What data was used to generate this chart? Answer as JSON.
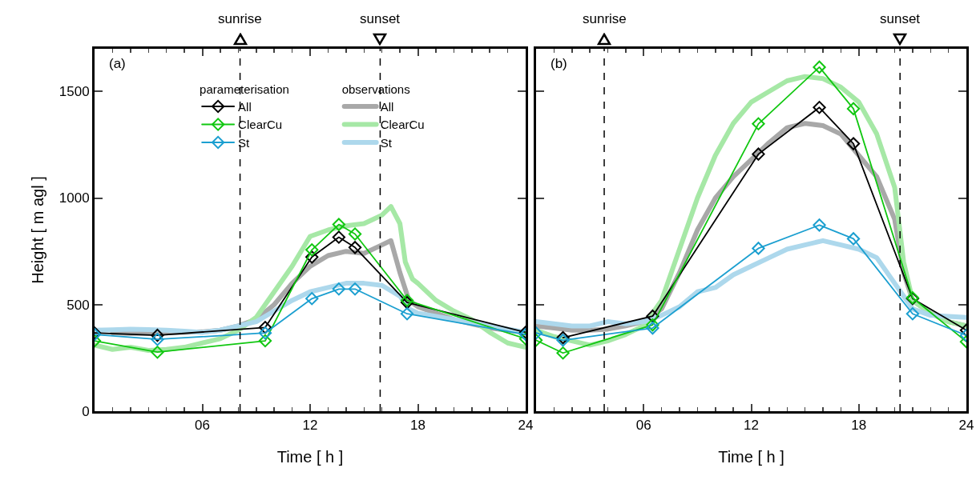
{
  "chart_data": [
    {
      "type": "line",
      "xlabel": "Time [ h ]",
      "ylabel": "Height [ m agl ]",
      "legend_title": "parameterisation",
      "annotations": [
        "(a)",
        "observations"
      ],
      "legend": "top",
      "xlim": [
        0,
        24
      ],
      "xticks": [
        {
          "value": 6,
          "label": "06"
        },
        12,
        18,
        24
      ],
      "ylim": [
        0,
        1700
      ],
      "yticks": [
        0,
        500,
        1000,
        1500
      ],
      "grid": false,
      "line_style": "solid",
      "ref_lines": [
        {
          "axis": "x",
          "value": 8.1,
          "label": "sunrise",
          "color": "#000000",
          "line_style": "dashed"
        },
        {
          "axis": "x",
          "value": 15.9,
          "label": "sunset",
          "color": "#000000",
          "line_style": "dashed"
        }
      ],
      "series": [
        {
          "name": "All",
          "color": "#a8a8a8",
          "marker": "none",
          "x": [
            1,
            2,
            3,
            4,
            5,
            6,
            7,
            8,
            9,
            10,
            11,
            12,
            13,
            14,
            15,
            16,
            16.5,
            17,
            17.5,
            18,
            19,
            20,
            21,
            22,
            23,
            24
          ],
          "values": [
            368,
            365,
            365,
            368,
            370,
            372,
            380,
            400,
            430,
            500,
            600,
            680,
            730,
            750,
            740,
            780,
            800,
            650,
            520,
            490,
            460,
            430,
            410,
            390,
            380,
            370
          ]
        },
        {
          "name": "ClearCu",
          "color": "#a6e8a6",
          "marker": "none",
          "x": [
            0,
            1,
            2,
            3,
            4,
            5,
            6,
            7,
            8,
            9,
            10,
            11,
            12,
            13,
            14,
            15,
            15.5,
            16,
            16.5,
            17,
            17.3,
            17.7,
            18,
            19,
            20,
            21,
            22,
            23,
            24
          ],
          "values": [
            310,
            290,
            300,
            285,
            290,
            300,
            320,
            340,
            380,
            440,
            560,
            680,
            820,
            850,
            870,
            880,
            900,
            920,
            960,
            880,
            700,
            620,
            600,
            520,
            470,
            430,
            370,
            320,
            300
          ]
        },
        {
          "name": "St",
          "color": "#add8ec",
          "marker": "none",
          "x": [
            0,
            1,
            2,
            3,
            4,
            5,
            6,
            7,
            8,
            9,
            10,
            11,
            12,
            13,
            14,
            15,
            16,
            17,
            17.5,
            18,
            19,
            20,
            21,
            22,
            23,
            24
          ],
          "values": [
            380,
            382,
            385,
            383,
            380,
            375,
            370,
            380,
            400,
            420,
            470,
            520,
            560,
            580,
            600,
            600,
            590,
            540,
            480,
            460,
            445,
            430,
            415,
            400,
            385,
            370
          ]
        },
        {
          "name": "All",
          "color": "#000000",
          "marker": "diamond",
          "x": [
            0,
            3.5,
            9.5,
            12.1,
            13.6,
            14.5,
            17.4,
            24
          ],
          "values": [
            367,
            356,
            393,
            723,
            816,
            768,
            510,
            370
          ]
        },
        {
          "name": "ClearCu",
          "color": "#11c711",
          "marker": "diamond",
          "x": [
            0,
            3.5,
            9.5,
            12.1,
            13.6,
            14.5,
            17.4,
            24
          ],
          "values": [
            330,
            277,
            330,
            757,
            876,
            831,
            520,
            340
          ]
        },
        {
          "name": "St",
          "color": "#1b9fd0",
          "marker": "diamond",
          "x": [
            0,
            3.5,
            9.5,
            12.1,
            13.6,
            14.5,
            17.4,
            24
          ],
          "values": [
            360,
            337,
            367,
            528,
            573,
            573,
            457,
            360
          ]
        }
      ]
    },
    {
      "type": "line",
      "xlabel": "Time [ h ]",
      "annotations": [
        "(b)"
      ],
      "legend": false,
      "tick_labels": "x",
      "xlim": [
        0,
        24
      ],
      "xticks": [
        {
          "value": 6,
          "label": "06"
        },
        12,
        18,
        24
      ],
      "ylim": [
        0,
        1700
      ],
      "yticks": [
        0,
        500,
        1000,
        1500
      ],
      "grid": false,
      "line_style": "solid",
      "ref_lines": [
        {
          "axis": "x",
          "value": 3.8,
          "label": "sunrise",
          "color": "#000000",
          "line_style": "dashed"
        },
        {
          "axis": "x",
          "value": 20.3,
          "label": "sunset",
          "color": "#000000",
          "line_style": "dashed"
        }
      ],
      "series": [
        {
          "color": "#a8a8a8",
          "marker": "none",
          "x": [
            0,
            1,
            2,
            3,
            4,
            5,
            6,
            7,
            8,
            9,
            10,
            11,
            12,
            13,
            14,
            15,
            16,
            17,
            18,
            19,
            20,
            20.5,
            21,
            22,
            23,
            24
          ],
          "values": [
            400,
            390,
            380,
            380,
            385,
            400,
            420,
            480,
            650,
            850,
            1000,
            1100,
            1180,
            1260,
            1330,
            1350,
            1340,
            1300,
            1200,
            1100,
            900,
            650,
            520,
            460,
            420,
            400
          ]
        },
        {
          "color": "#a6e8a6",
          "marker": "none",
          "x": [
            0,
            1,
            2,
            3,
            4,
            5,
            6,
            7,
            8,
            9,
            10,
            11,
            12,
            13,
            14,
            15,
            16,
            17,
            18,
            19,
            20,
            20.5,
            21,
            22,
            23,
            24
          ],
          "values": [
            380,
            350,
            330,
            310,
            330,
            360,
            400,
            520,
            760,
            1000,
            1200,
            1350,
            1450,
            1500,
            1550,
            1570,
            1560,
            1520,
            1450,
            1300,
            1050,
            700,
            520,
            460,
            420,
            400
          ]
        },
        {
          "color": "#add8ec",
          "marker": "none",
          "x": [
            0,
            1,
            2,
            3,
            4,
            5,
            6,
            7,
            8,
            9,
            10,
            11,
            12,
            13,
            14,
            15,
            16,
            17,
            18,
            19,
            20,
            21,
            22,
            23,
            24
          ],
          "values": [
            420,
            410,
            400,
            400,
            420,
            410,
            420,
            450,
            490,
            560,
            580,
            640,
            680,
            720,
            760,
            780,
            800,
            780,
            760,
            720,
            600,
            480,
            450,
            445,
            440
          ]
        },
        {
          "color": "#000000",
          "marker": "diamond",
          "x": [
            1.5,
            6.5,
            12.4,
            15.8,
            17.7,
            21,
            24
          ],
          "values": [
            345,
            446,
            1206,
            1425,
            1255,
            528,
            380
          ]
        },
        {
          "color": "#11c711",
          "marker": "diamond",
          "x": [
            0,
            1.5,
            6.5,
            12.4,
            15.8,
            17.7,
            21,
            24
          ],
          "values": [
            333,
            273,
            405,
            1348,
            1614,
            1419,
            532,
            326
          ]
        },
        {
          "color": "#1b9fd0",
          "marker": "diamond",
          "x": [
            0,
            1.5,
            6.5,
            12.4,
            15.8,
            17.7,
            21,
            24
          ],
          "values": [
            367,
            333,
            390,
            764,
            873,
            809,
            457,
            356
          ]
        }
      ]
    }
  ]
}
